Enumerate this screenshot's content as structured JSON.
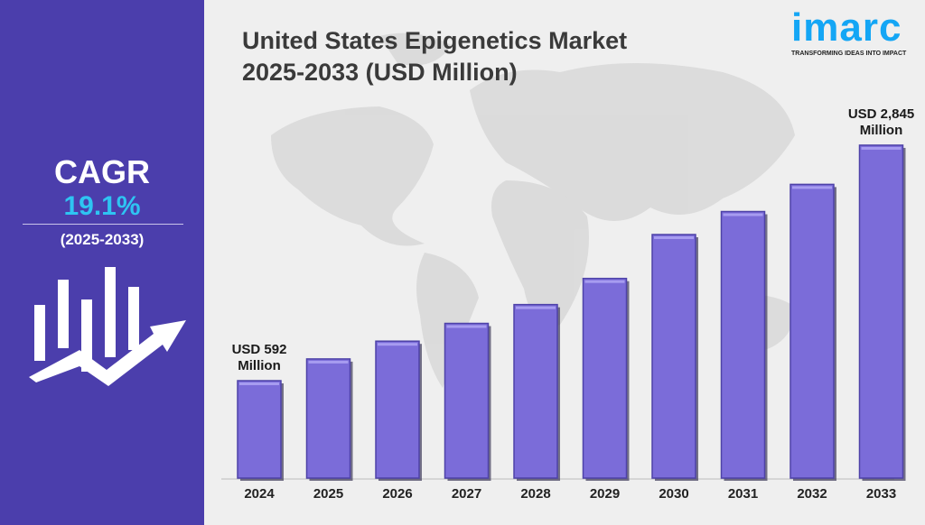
{
  "title_line1": "United States Epigenetics Market",
  "title_line2": "2025-2033 (USD Million)",
  "logo": {
    "word": "imarc",
    "tagline": "TRANSFORMING IDEAS INTO IMPACT"
  },
  "cagr": {
    "label": "CAGR",
    "value": "19.1%",
    "period": "(2025-2033)"
  },
  "colors": {
    "panel": "#4b3eac",
    "cagr_value": "#2ec4f2",
    "bar": "#7b6cd9",
    "logo": "#14a6f5"
  },
  "icons": [
    "growth-chart-arrow-icon",
    "world-map-background"
  ],
  "chart_data": {
    "type": "bar",
    "title": "United States Epigenetics Market 2025-2033 (USD Million)",
    "categories": [
      "2024",
      "2025",
      "2026",
      "2027",
      "2028",
      "2029",
      "2030",
      "2031",
      "2032",
      "2033"
    ],
    "values": [
      592,
      800,
      970,
      1140,
      1320,
      1570,
      1990,
      2210,
      2470,
      2845
    ],
    "annotations": [
      {
        "category": "2024",
        "line1": "USD 592",
        "line2": "Million"
      },
      {
        "category": "2033",
        "line1": "USD 2,845",
        "line2": "Million"
      }
    ],
    "grid": false,
    "legend": "none"
  }
}
